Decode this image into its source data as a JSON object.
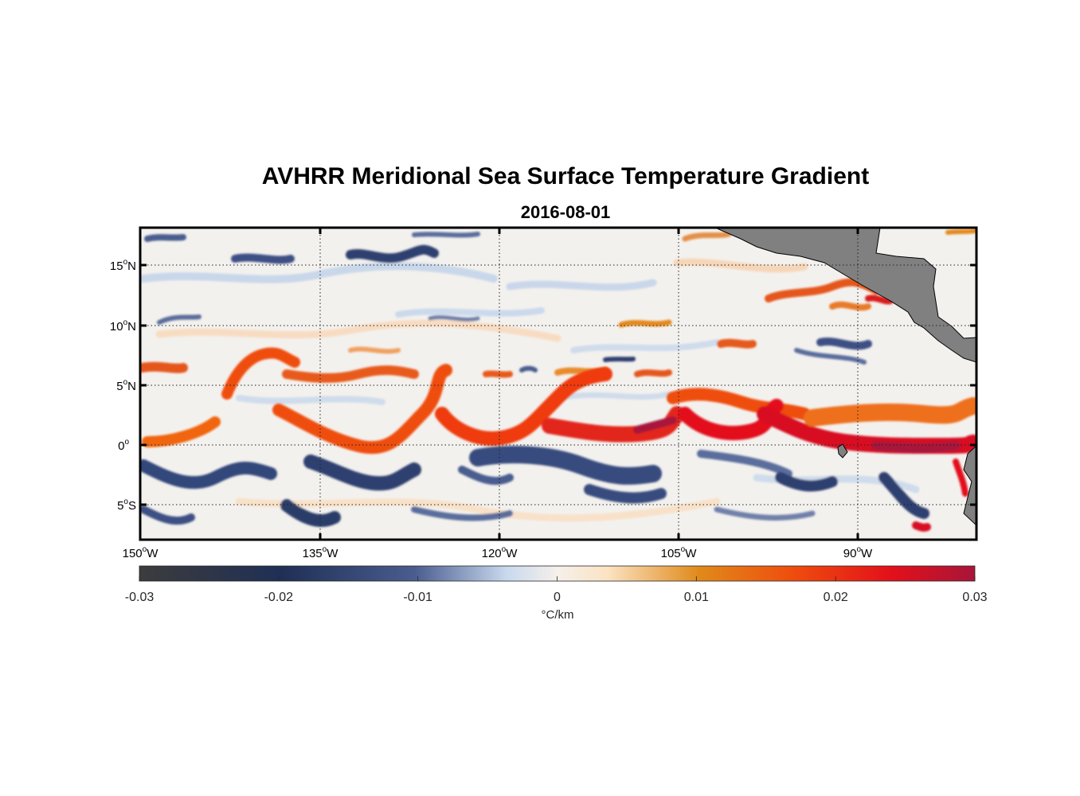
{
  "title": "AVHRR Meridional Sea Surface Temperature Gradient",
  "subtitle": "2016-08-01",
  "colorbar": {
    "units": "°C/km",
    "tick_labels": [
      "-0.03",
      "-0.02",
      "-0.01",
      "0",
      "0.01",
      "0.02",
      "0.03"
    ],
    "tick_values": [
      -0.03,
      -0.02,
      -0.01,
      0,
      0.01,
      0.02,
      0.03
    ],
    "colors": [
      "#3c3c3c",
      "#1f2f55",
      "#4a5d8f",
      "#dce8f2",
      "#f5f0ea",
      "#fbe3c3",
      "#e08a1a",
      "#ef4e0e",
      "#e3101a",
      "#a8153a"
    ]
  },
  "map": {
    "lon_labels": [
      {
        "value": "150",
        "hemi": "W"
      },
      {
        "value": "135",
        "hemi": "W"
      },
      {
        "value": "120",
        "hemi": "W"
      },
      {
        "value": "105",
        "hemi": "W"
      },
      {
        "value": "90",
        "hemi": "W"
      }
    ],
    "lat_labels": [
      {
        "value": "15",
        "hemi": "N"
      },
      {
        "value": "10",
        "hemi": "N"
      },
      {
        "value": "5",
        "hemi": "N"
      },
      {
        "value": "0",
        "hemi": ""
      },
      {
        "value": "5",
        "hemi": "S"
      }
    ],
    "land_color": "#808080",
    "grid": "dotted"
  }
}
